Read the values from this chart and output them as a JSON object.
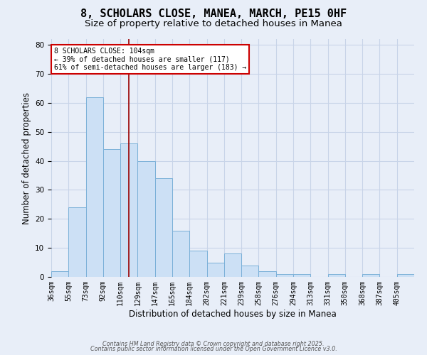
{
  "title": "8, SCHOLARS CLOSE, MANEA, MARCH, PE15 0HF",
  "subtitle": "Size of property relative to detached houses in Manea",
  "xlabel": "Distribution of detached houses by size in Manea",
  "ylabel": "Number of detached properties",
  "bar_color": "#cce0f5",
  "bar_edge_color": "#7ab0d8",
  "bin_labels": [
    "36sqm",
    "55sqm",
    "73sqm",
    "92sqm",
    "110sqm",
    "129sqm",
    "147sqm",
    "165sqm",
    "184sqm",
    "202sqm",
    "221sqm",
    "239sqm",
    "258sqm",
    "276sqm",
    "294sqm",
    "313sqm",
    "331sqm",
    "350sqm",
    "368sqm",
    "387sqm",
    "405sqm"
  ],
  "values": [
    2,
    24,
    62,
    44,
    46,
    40,
    34,
    16,
    9,
    5,
    8,
    4,
    2,
    1,
    1,
    0,
    1,
    0,
    1,
    0,
    1
  ],
  "n_bins": 21,
  "property_size_bin": 4.5,
  "red_line_color": "#990000",
  "annotation_text": "8 SCHOLARS CLOSE: 104sqm\n← 39% of detached houses are smaller (117)\n61% of semi-detached houses are larger (183) →",
  "annotation_box_color": "white",
  "annotation_box_edge_color": "#cc0000",
  "ylim": [
    0,
    82
  ],
  "yticks": [
    0,
    10,
    20,
    30,
    40,
    50,
    60,
    70,
    80
  ],
  "grid_color": "#c8d4e8",
  "background_color": "#e8eef8",
  "footer_line1": "Contains HM Land Registry data © Crown copyright and database right 2025.",
  "footer_line2": "Contains public sector information licensed under the Open Government Licence v3.0.",
  "title_fontsize": 11,
  "subtitle_fontsize": 9.5,
  "tick_fontsize": 7,
  "ylabel_fontsize": 8.5,
  "xlabel_fontsize": 8.5,
  "annotation_fontsize": 7
}
